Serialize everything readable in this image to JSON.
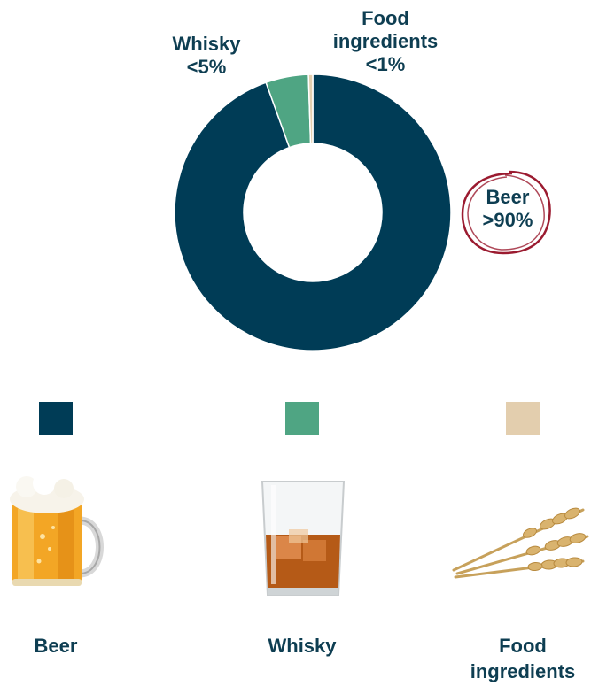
{
  "chart_data": {
    "type": "pie",
    "categories": [
      "Beer",
      "Whisky",
      "Food ingredients"
    ],
    "values": [
      94.5,
      5,
      0.5
    ],
    "colors": [
      "#003c56",
      "#4fa583",
      "#e3ceae"
    ],
    "slice_labels": [
      {
        "line1": "Beer",
        "line2": ">90%"
      },
      {
        "line1": "Whisky",
        "line2": "<5%"
      },
      {
        "line1": "Food",
        "line2": "ingredients",
        "line3": "<1%"
      }
    ],
    "donut": true,
    "highlight": {
      "category": "Beer",
      "style": "hand-drawn circle",
      "color": "#9b1b30"
    }
  },
  "legend": {
    "items": [
      {
        "line1": "Beer",
        "color": "#003c56",
        "icon": "beer-mug-icon"
      },
      {
        "line1": "Whisky",
        "color": "#4fa583",
        "icon": "whisky-glass-icon"
      },
      {
        "line1": "Food",
        "line2": "ingredients",
        "color": "#e3ceae",
        "icon": "wheat-icon"
      }
    ]
  }
}
